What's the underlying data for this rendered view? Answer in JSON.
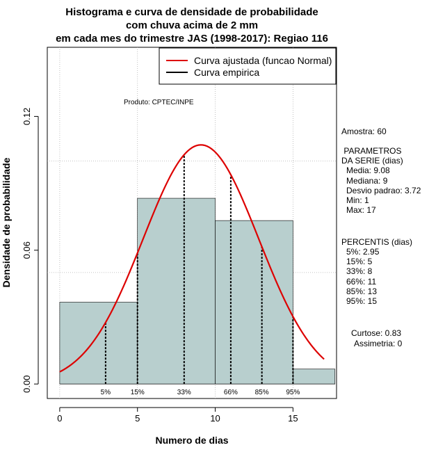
{
  "chart_data": {
    "type": "bar",
    "title_lines": [
      "Histograma e curva de densidade de probabilidade",
      "com chuva acima de 2 mm",
      "em cada mes do trimestre JAS (1998-2017): Regiao 116"
    ],
    "xlabel": "Numero de dias",
    "ylabel": "Densidade de probabilidade",
    "xlim": [
      -0.8,
      17.8
    ],
    "ylim": [
      -0.0065,
      0.151
    ],
    "x_ticks": [
      0,
      5,
      10,
      15
    ],
    "y_ticks": [
      0.0,
      0.06,
      0.12
    ],
    "y_tick_labels": [
      "0.00",
      "0.06",
      "0.12"
    ],
    "grid_x": [
      0,
      5,
      10,
      15
    ],
    "grid_y": [
      0.05,
      0.1
    ],
    "bins": [
      {
        "start": 0,
        "end": 5,
        "density": 0.0367
      },
      {
        "start": 5,
        "end": 10,
        "density": 0.0833
      },
      {
        "start": 10,
        "end": 15,
        "density": 0.0733
      },
      {
        "start": 15,
        "end": 17.7,
        "density": 0.0067
      }
    ],
    "fitted_normal": {
      "mean": 9.08,
      "sd": 3.72,
      "x_start": 0,
      "x_end": 17
    },
    "percentile_lines": [
      {
        "label": "5%",
        "x": 2.95
      },
      {
        "label": "15%",
        "x": 5
      },
      {
        "label": "33%",
        "x": 8
      },
      {
        "label": "66%",
        "x": 11
      },
      {
        "label": "85%",
        "x": 13
      },
      {
        "label": "95%",
        "x": 15
      }
    ],
    "legend": {
      "position": "top-right",
      "entries": [
        {
          "label": "Curva ajustada (funcao Normal)",
          "color": "#dd0000"
        },
        {
          "label": "Curva empirica",
          "color": "#000000"
        }
      ]
    },
    "annotation": "Produto: CPTEC/INPE",
    "colors": {
      "bar_fill": "#b8cfce",
      "curve": "#dd0000",
      "grid": "#b0b0b0"
    }
  },
  "side_panel": {
    "sample": "Amostra: 60",
    "params_title": " PARAMETROS",
    "params_subtitle": "DA SERIE (dias)",
    "params": [
      "Media: 9.08",
      "Mediana: 9",
      "Desvio padrao: 3.72",
      "Min: 1",
      "Max: 17"
    ],
    "percentis_title": "PERCENTIS (dias)",
    "percentis": [
      "5%: 2.95",
      "15%: 5",
      "33%: 8",
      "66%: 11",
      "85%: 13",
      "95%: 15"
    ],
    "kurtosis": "Curtose: 0.83",
    "skewness": "Assimetria: 0"
  }
}
